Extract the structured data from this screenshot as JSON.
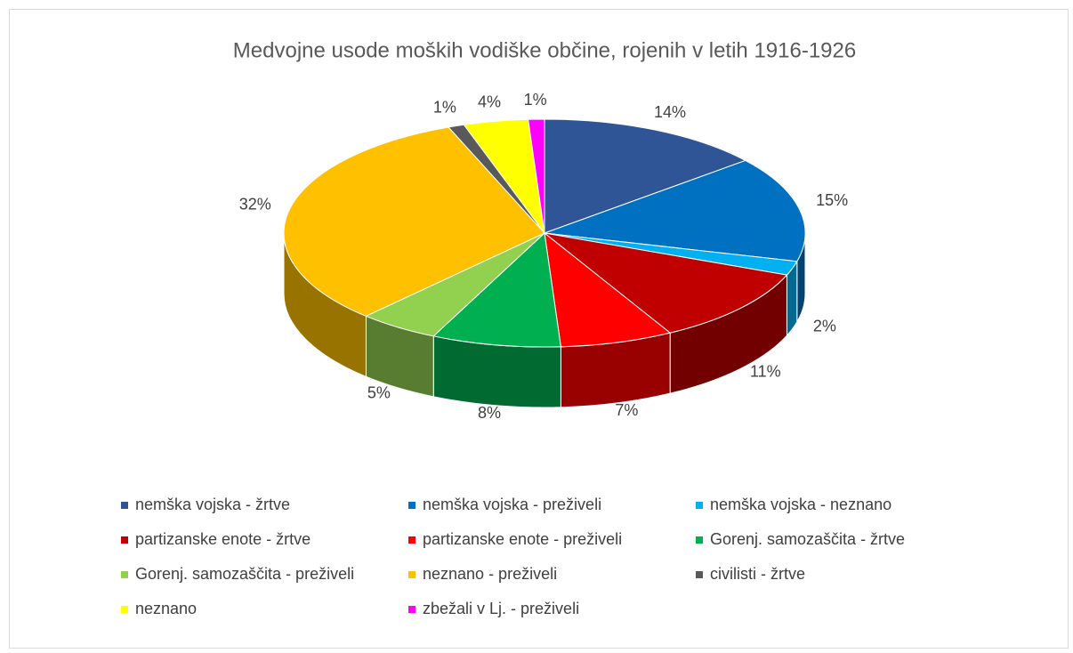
{
  "chart_data": {
    "type": "pie",
    "title": "Medvojne usode moških vodiške občine, rojenih v letih 1916-1926",
    "categories": [
      "nemška vojska - žrtve",
      "nemška vojska - preživeli",
      "nemška vojska - neznano",
      "partizanske enote - žrtve",
      "partizanske enote - preživeli",
      "Gorenj. samozaščita - žrtve",
      "Gorenj. samozaščita - preživeli",
      "neznano - preživeli",
      "civilisti - žrtve",
      "neznano",
      "zbežali v Lj. - preživeli"
    ],
    "values": [
      14,
      15,
      2,
      11,
      7,
      8,
      5,
      32,
      1,
      4,
      1
    ],
    "value_labels": [
      "14%",
      "15%",
      "2%",
      "11%",
      "7%",
      "8%",
      "5%",
      "32%",
      "1%",
      "4%",
      "1%"
    ],
    "colors": [
      "#2f5597",
      "#0070c0",
      "#00b0f0",
      "#c00000",
      "#ff0000",
      "#00b050",
      "#92d050",
      "#ffc000",
      "#595959",
      "#ffff00",
      "#ff00ff"
    ],
    "legend": "bottom"
  }
}
